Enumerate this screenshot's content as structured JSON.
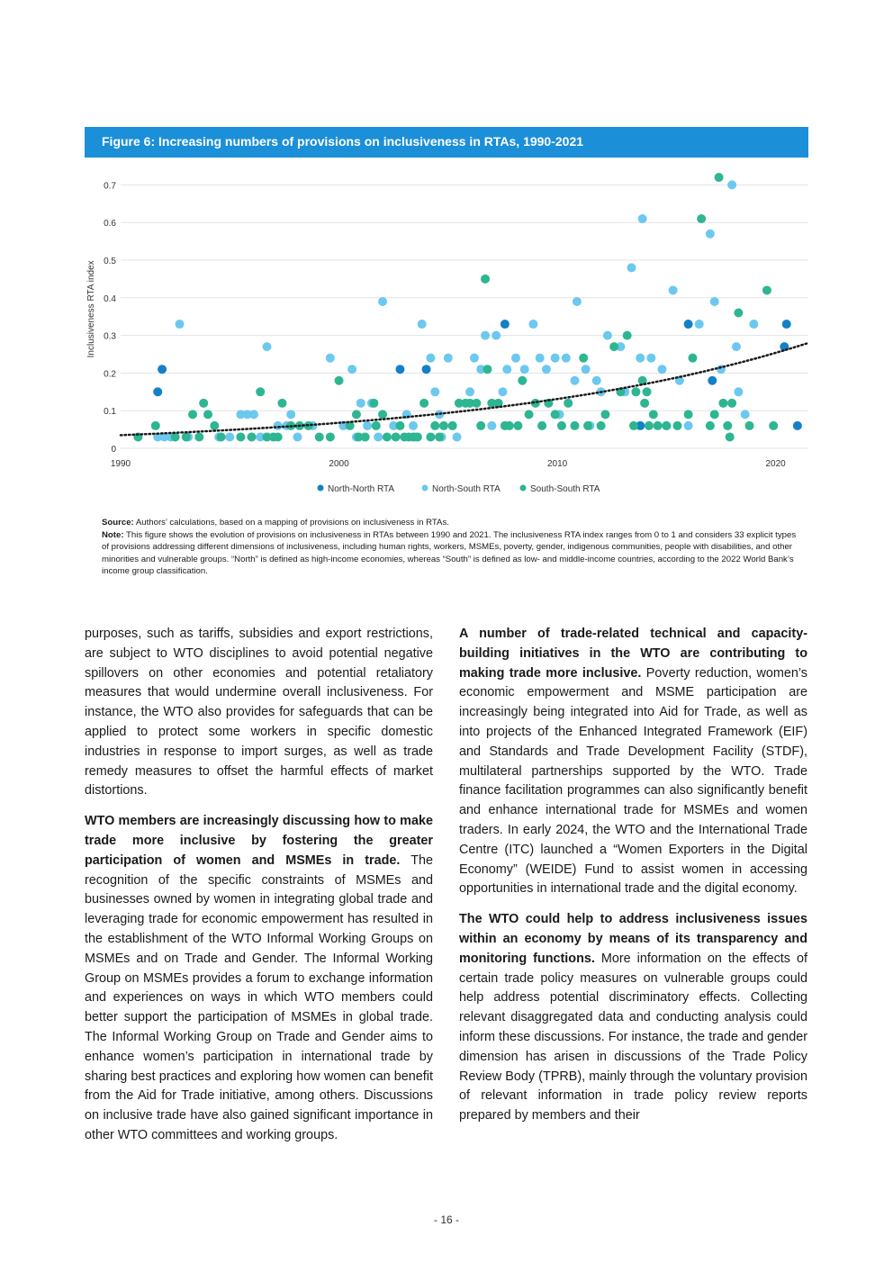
{
  "figure": {
    "title": "Figure 6: Increasing numbers of provisions on inclusiveness in RTAs, 1990-2021"
  },
  "chart_data": {
    "type": "scatter",
    "title": "Figure 6: Increasing numbers of provisions on inclusiveness in RTAs, 1990-2021",
    "xlabel": "",
    "ylabel": "Inclusiveness RTA index",
    "xlim": [
      1990,
      2021.5
    ],
    "ylim": [
      0,
      0.75
    ],
    "x_ticks": [
      "1990",
      "2000",
      "2010",
      "2020"
    ],
    "y_ticks": [
      "0",
      "0.1",
      "0.2",
      "0.3",
      "0.4",
      "0.5",
      "0.6",
      "0.7"
    ],
    "grid": "horizontal",
    "legend_position": "bottom",
    "trendline": {
      "style": "dotted",
      "color": "#1a1a1a",
      "start": [
        1990,
        0.035
      ],
      "end": [
        2021.5,
        0.28
      ]
    },
    "series": [
      {
        "name": "North-North RTA",
        "color": "#1380c8",
        "points": [
          [
            1991.7,
            0.15
          ],
          [
            1991.9,
            0.21
          ],
          [
            2002.8,
            0.21
          ],
          [
            2004.0,
            0.21
          ],
          [
            2007.6,
            0.33
          ],
          [
            2013.8,
            0.06
          ],
          [
            2016.0,
            0.33
          ],
          [
            2017.1,
            0.18
          ],
          [
            2020.4,
            0.27
          ],
          [
            2020.5,
            0.33
          ],
          [
            2021.0,
            0.06
          ]
        ]
      },
      {
        "name": "North-South RTA",
        "color": "#6cc8ef",
        "points": [
          [
            1991.7,
            0.03
          ],
          [
            1992.0,
            0.03
          ],
          [
            1992.3,
            0.03
          ],
          [
            1992.7,
            0.33
          ],
          [
            1993.1,
            0.03
          ],
          [
            1994.5,
            0.03
          ],
          [
            1995.0,
            0.03
          ],
          [
            1995.5,
            0.09
          ],
          [
            1995.8,
            0.09
          ],
          [
            1996.1,
            0.09
          ],
          [
            1996.4,
            0.03
          ],
          [
            1996.7,
            0.27
          ],
          [
            1997.2,
            0.06
          ],
          [
            1997.6,
            0.06
          ],
          [
            1997.8,
            0.09
          ],
          [
            1998.1,
            0.03
          ],
          [
            1998.8,
            0.06
          ],
          [
            1999.6,
            0.24
          ],
          [
            2000.2,
            0.06
          ],
          [
            2000.6,
            0.21
          ],
          [
            2000.8,
            0.03
          ],
          [
            2001.0,
            0.12
          ],
          [
            2001.3,
            0.06
          ],
          [
            2001.5,
            0.12
          ],
          [
            2001.8,
            0.03
          ],
          [
            2002.0,
            0.39
          ],
          [
            2002.5,
            0.06
          ],
          [
            2003.1,
            0.09
          ],
          [
            2003.4,
            0.06
          ],
          [
            2003.5,
            0.03
          ],
          [
            2003.8,
            0.33
          ],
          [
            2004.2,
            0.24
          ],
          [
            2004.4,
            0.15
          ],
          [
            2004.6,
            0.09
          ],
          [
            2004.7,
            0.03
          ],
          [
            2005.0,
            0.24
          ],
          [
            2005.2,
            0.06
          ],
          [
            2005.4,
            0.03
          ],
          [
            2006.0,
            0.15
          ],
          [
            2006.2,
            0.24
          ],
          [
            2006.5,
            0.21
          ],
          [
            2006.7,
            0.3
          ],
          [
            2007.0,
            0.06
          ],
          [
            2007.2,
            0.3
          ],
          [
            2007.5,
            0.15
          ],
          [
            2007.7,
            0.21
          ],
          [
            2008.1,
            0.24
          ],
          [
            2008.5,
            0.21
          ],
          [
            2008.9,
            0.33
          ],
          [
            2009.2,
            0.24
          ],
          [
            2009.5,
            0.21
          ],
          [
            2009.9,
            0.24
          ],
          [
            2010.1,
            0.09
          ],
          [
            2010.4,
            0.24
          ],
          [
            2010.8,
            0.18
          ],
          [
            2010.9,
            0.39
          ],
          [
            2011.3,
            0.21
          ],
          [
            2011.5,
            0.06
          ],
          [
            2011.8,
            0.18
          ],
          [
            2012.0,
            0.15
          ],
          [
            2012.3,
            0.3
          ],
          [
            2012.9,
            0.27
          ],
          [
            2013.1,
            0.15
          ],
          [
            2013.4,
            0.48
          ],
          [
            2013.8,
            0.24
          ],
          [
            2013.9,
            0.61
          ],
          [
            2014.3,
            0.24
          ],
          [
            2014.8,
            0.21
          ],
          [
            2015.0,
            0.06
          ],
          [
            2015.3,
            0.42
          ],
          [
            2015.6,
            0.18
          ],
          [
            2016.0,
            0.06
          ],
          [
            2016.5,
            0.33
          ],
          [
            2017.0,
            0.57
          ],
          [
            2017.2,
            0.39
          ],
          [
            2017.5,
            0.21
          ],
          [
            2018.0,
            0.7
          ],
          [
            2018.2,
            0.27
          ],
          [
            2018.3,
            0.15
          ],
          [
            2018.6,
            0.09
          ],
          [
            2019.0,
            0.33
          ]
        ]
      },
      {
        "name": "South-South RTA",
        "color": "#2eb592",
        "points": [
          [
            1990.8,
            0.03
          ],
          [
            1991.6,
            0.06
          ],
          [
            1992.5,
            0.03
          ],
          [
            1993.0,
            0.03
          ],
          [
            1993.3,
            0.09
          ],
          [
            1993.6,
            0.03
          ],
          [
            1993.8,
            0.12
          ],
          [
            1994.0,
            0.09
          ],
          [
            1994.3,
            0.06
          ],
          [
            1994.6,
            0.03
          ],
          [
            1995.5,
            0.03
          ],
          [
            1996.0,
            0.03
          ],
          [
            1996.4,
            0.15
          ],
          [
            1996.7,
            0.03
          ],
          [
            1997.0,
            0.03
          ],
          [
            1997.2,
            0.03
          ],
          [
            1997.4,
            0.12
          ],
          [
            1997.8,
            0.06
          ],
          [
            1998.2,
            0.06
          ],
          [
            1998.6,
            0.06
          ],
          [
            1999.1,
            0.03
          ],
          [
            1999.6,
            0.03
          ],
          [
            2000.0,
            0.18
          ],
          [
            2000.5,
            0.06
          ],
          [
            2000.8,
            0.09
          ],
          [
            2000.9,
            0.03
          ],
          [
            2001.2,
            0.03
          ],
          [
            2001.6,
            0.12
          ],
          [
            2001.7,
            0.06
          ],
          [
            2002.0,
            0.09
          ],
          [
            2002.2,
            0.03
          ],
          [
            2002.6,
            0.03
          ],
          [
            2002.8,
            0.06
          ],
          [
            2003.0,
            0.03
          ],
          [
            2003.2,
            0.03
          ],
          [
            2003.4,
            0.03
          ],
          [
            2003.6,
            0.03
          ],
          [
            2003.9,
            0.12
          ],
          [
            2004.2,
            0.03
          ],
          [
            2004.4,
            0.06
          ],
          [
            2004.6,
            0.03
          ],
          [
            2004.8,
            0.06
          ],
          [
            2005.2,
            0.06
          ],
          [
            2005.5,
            0.12
          ],
          [
            2005.8,
            0.12
          ],
          [
            2006.0,
            0.12
          ],
          [
            2006.3,
            0.12
          ],
          [
            2006.5,
            0.06
          ],
          [
            2006.7,
            0.45
          ],
          [
            2006.8,
            0.21
          ],
          [
            2007.0,
            0.12
          ],
          [
            2007.3,
            0.12
          ],
          [
            2007.6,
            0.06
          ],
          [
            2007.8,
            0.06
          ],
          [
            2008.2,
            0.06
          ],
          [
            2008.4,
            0.18
          ],
          [
            2008.7,
            0.09
          ],
          [
            2009.0,
            0.12
          ],
          [
            2009.3,
            0.06
          ],
          [
            2009.6,
            0.12
          ],
          [
            2009.9,
            0.09
          ],
          [
            2010.2,
            0.06
          ],
          [
            2010.5,
            0.12
          ],
          [
            2010.8,
            0.06
          ],
          [
            2011.2,
            0.24
          ],
          [
            2011.4,
            0.06
          ],
          [
            2012.0,
            0.06
          ],
          [
            2012.2,
            0.09
          ],
          [
            2012.6,
            0.27
          ],
          [
            2012.9,
            0.15
          ],
          [
            2013.2,
            0.3
          ],
          [
            2013.5,
            0.06
          ],
          [
            2013.6,
            0.15
          ],
          [
            2013.9,
            0.18
          ],
          [
            2014.0,
            0.12
          ],
          [
            2014.1,
            0.15
          ],
          [
            2014.2,
            0.06
          ],
          [
            2014.4,
            0.09
          ],
          [
            2014.6,
            0.06
          ],
          [
            2015.0,
            0.06
          ],
          [
            2015.5,
            0.06
          ],
          [
            2016.0,
            0.09
          ],
          [
            2016.2,
            0.24
          ],
          [
            2016.6,
            0.61
          ],
          [
            2017.0,
            0.06
          ],
          [
            2017.2,
            0.09
          ],
          [
            2017.4,
            0.72
          ],
          [
            2017.6,
            0.12
          ],
          [
            2017.8,
            0.06
          ],
          [
            2017.9,
            0.03
          ],
          [
            2018.0,
            0.12
          ],
          [
            2018.3,
            0.36
          ],
          [
            2018.8,
            0.06
          ],
          [
            2019.6,
            0.42
          ],
          [
            2019.9,
            0.06
          ]
        ]
      }
    ]
  },
  "notes": {
    "source_label": "Source:",
    "source_text": " Authors’ calculations, based on a mapping of provisions on inclusiveness in RTAs.",
    "note_label": "Note:",
    "note_text": " This figure shows the evolution of provisions on inclusiveness in RTAs between 1990 and 2021. The inclusiveness RTA index ranges from 0 to 1 and considers 33 explicit types of provisions addressing different dimensions of inclusiveness, including human rights, workers, MSMEs, poverty, gender, indigenous communities, people with disabilities, and other minorities and vulnerable groups. “North” is defined as high-income economies, whereas “South” is defined as low- and middle-income countries, according to the 2022 World Bank’s income group classification."
  },
  "body": {
    "left": {
      "p1": "purposes, such as tariffs, subsidies and export restrictions, are subject to WTO disciplines to avoid potential negative spillovers on other economies and potential retaliatory measures that would undermine overall inclusiveness. For instance, the WTO also provides for safeguards that can be applied to protect some workers in specific domestic industries in response to import surges, as well as trade remedy measures to offset the harmful effects of market distortions.",
      "p2_bold": "WTO members are increasingly discussing how to make trade more inclusive by fostering the greater participation of women and MSMEs in trade.",
      "p2_text": " The recognition of the specific constraints of MSMEs and businesses owned by women in integrating global trade and leveraging trade for economic empowerment has resulted in the establishment of the WTO Informal Working Groups on MSMEs and on Trade and Gender. The Informal Working Group on MSMEs provides a forum to exchange information and experiences on ways in which WTO members could better support the participation of MSMEs in global trade. The Informal Working Group on Trade and Gender aims to enhance women’s participation in international trade by sharing best practices and exploring how women can benefit from the Aid for Trade initiative, among others. Discussions on inclusive trade have also gained significant importance in other WTO committees and working groups."
    },
    "right": {
      "p1_bold": "A number of trade-related technical and capacity-building initiatives in the WTO are contributing to making trade more inclusive.",
      "p1_text": " Poverty reduction, women’s economic empowerment and MSME participation are increasingly being integrated into Aid for Trade, as well as into projects of the Enhanced Integrated Framework (EIF) and Standards and Trade Development Facility (STDF), multilateral partnerships supported by the WTO. Trade finance facilitation programmes can also significantly benefit and enhance international trade for MSMEs and women traders. In early 2024, the WTO and the International Trade Centre (ITC) launched a “Women Exporters in the Digital Economy” (WEIDE) Fund to assist women in accessing opportunities in international trade and the digital economy.",
      "p2_bold": "The WTO could help to address inclusiveness issues within an economy by means of its transparency and monitoring functions.",
      "p2_text": " More information on the effects of certain trade policy measures on vulnerable groups could help address potential discriminatory effects. Collecting relevant disaggregated data and conducting analysis could inform these discussions. For instance, the trade and gender dimension has arisen in discussions of the Trade Policy Review Body (TPRB), mainly through the voluntary provision of relevant information in trade policy review reports prepared by members and their"
    }
  },
  "page_number": "- 16 -"
}
